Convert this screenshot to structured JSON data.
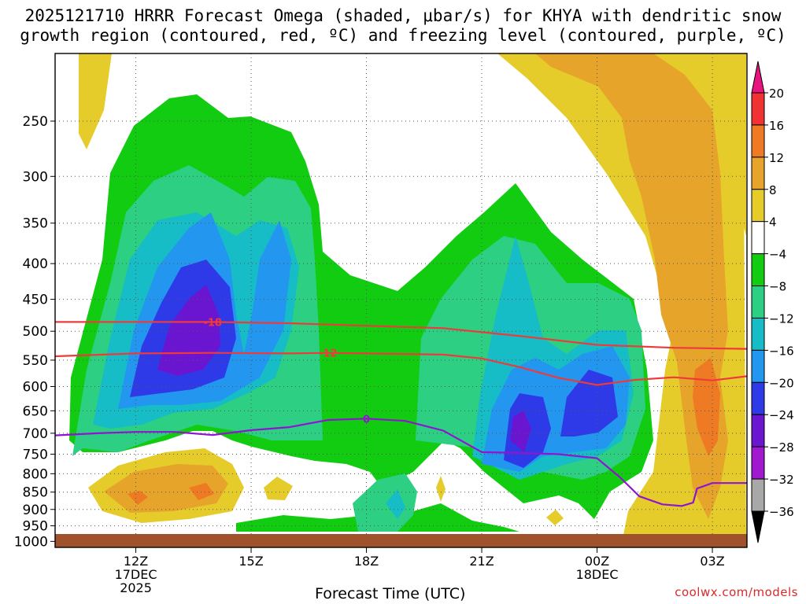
{
  "title_line1": "2025121710 HRRR Forecast Omega (shaded, μbar/s) for KHYA with dendritic snow",
  "title_line2": "growth region (contoured, red, ºC) and freezing level (contoured, purple, ºC)",
  "credit": "coolwx.com/models",
  "chart_data": {
    "type": "filled-contour",
    "title": "2025121710 HRRR Forecast Omega (shaded, μbar/s) for KHYA with dendritic snow growth region (contoured, red, ºC) and freezing level (contoured, purple, ºC)",
    "xlabel": "Forecast Time (UTC)",
    "ylabel": "",
    "x_range_hours": [
      9.9,
      27.9
    ],
    "x_ticks": [
      {
        "hour": 12,
        "label": "12Z",
        "sub": [
          "17DEC",
          "2025"
        ]
      },
      {
        "hour": 15,
        "label": "15Z",
        "sub": []
      },
      {
        "hour": 18,
        "label": "18Z",
        "sub": []
      },
      {
        "hour": 21,
        "label": "21Z",
        "sub": []
      },
      {
        "hour": 24,
        "label": "00Z",
        "sub": [
          "18DEC"
        ]
      },
      {
        "hour": 27,
        "label": "03Z",
        "sub": []
      }
    ],
    "y_ticks_hPa": [
      250,
      300,
      350,
      400,
      450,
      500,
      550,
      600,
      650,
      700,
      750,
      800,
      850,
      900,
      950,
      1000
    ],
    "y_range_hPa": [
      200,
      1020
    ],
    "y_scale": "log-pressure (inverted)",
    "grid": "dotted",
    "colorbar": {
      "labels": [
        "20",
        "16",
        "12",
        "8",
        "4",
        "−4",
        "−8",
        "−12",
        "−16",
        "−20",
        "−24",
        "−28",
        "−32",
        "−36"
      ],
      "colors": [
        "#e8137e",
        "#f03232",
        "#ee7a24",
        "#e6a42a",
        "#e6cc2a",
        "#ffffff",
        "#12cc12",
        "#2dcf82",
        "#16bcc6",
        "#2396f0",
        "#2e3ae8",
        "#6a16d0",
        "#a018d0",
        "#a8a8a8",
        "#000000"
      ]
    },
    "contours": [
      {
        "name": "-18",
        "color": "#ee3a3a",
        "points": [
          [
            9.9,
            485
          ],
          [
            12,
            485
          ],
          [
            14,
            485
          ],
          [
            16,
            487
          ],
          [
            18,
            491
          ],
          [
            20,
            495
          ],
          [
            22,
            508
          ],
          [
            24,
            523
          ],
          [
            26,
            528
          ],
          [
            27.9,
            530
          ]
        ]
      },
      {
        "name": "-12",
        "color": "#ee3a3a",
        "points": [
          [
            9.9,
            543
          ],
          [
            12,
            538
          ],
          [
            14,
            537
          ],
          [
            16,
            538
          ],
          [
            17,
            537
          ],
          [
            18,
            538
          ],
          [
            19,
            539
          ],
          [
            20,
            540
          ],
          [
            21,
            547
          ],
          [
            22,
            563
          ],
          [
            23,
            583
          ],
          [
            24,
            597
          ],
          [
            25,
            587
          ],
          [
            26,
            582
          ],
          [
            27,
            588
          ],
          [
            27.9,
            580
          ]
        ]
      },
      {
        "name": "0",
        "color": "#8e16d0",
        "points": [
          [
            9.9,
            705
          ],
          [
            11,
            700
          ],
          [
            12,
            697
          ],
          [
            13,
            697
          ],
          [
            14,
            704
          ],
          [
            15,
            693
          ],
          [
            16,
            686
          ],
          [
            17,
            670
          ],
          [
            18,
            667
          ],
          [
            19,
            672
          ],
          [
            20,
            694
          ],
          [
            21,
            745
          ],
          [
            22,
            747
          ],
          [
            23,
            750
          ],
          [
            24,
            760
          ],
          [
            24.6,
            810
          ],
          [
            25.1,
            862
          ],
          [
            25.7,
            885
          ],
          [
            26.2,
            890
          ],
          [
            26.5,
            880
          ],
          [
            26.6,
            840
          ],
          [
            27,
            825
          ],
          [
            27.9,
            825
          ]
        ]
      }
    ]
  }
}
